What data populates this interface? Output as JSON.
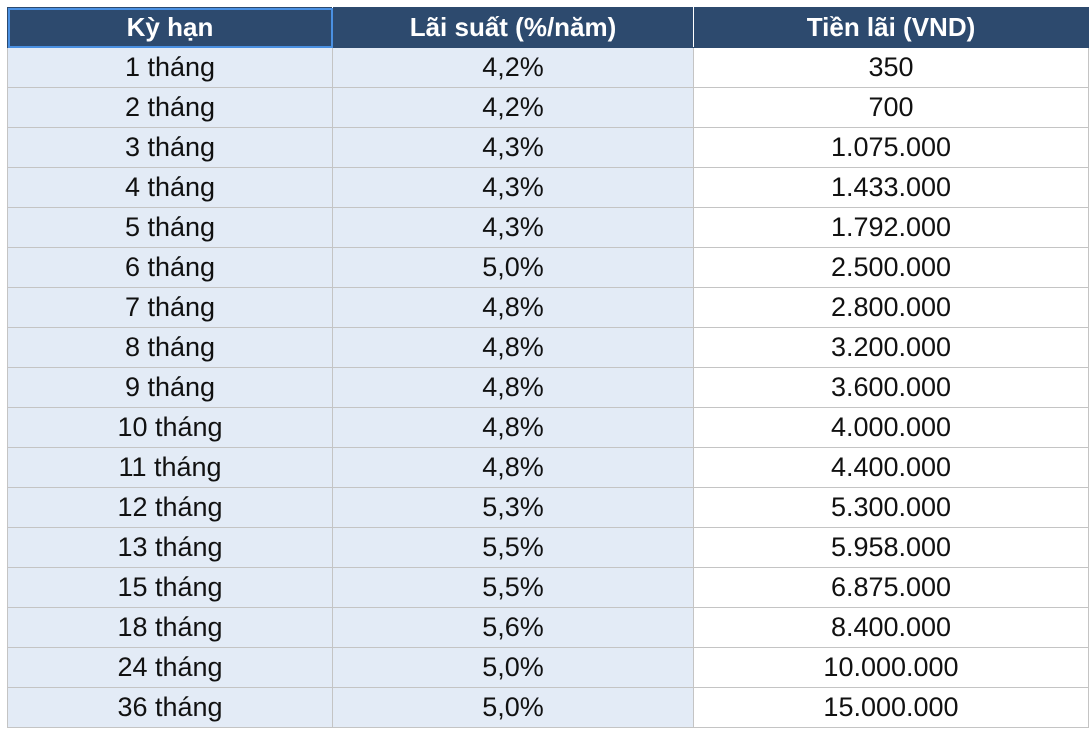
{
  "table": {
    "headers": [
      "Kỳ hạn",
      "Lãi suất (%/năm)",
      "Tiền lãi (VND)"
    ],
    "rows": [
      [
        "1 tháng",
        "4,2%",
        "350"
      ],
      [
        "2 tháng",
        "4,2%",
        "700"
      ],
      [
        "3 tháng",
        "4,3%",
        "1.075.000"
      ],
      [
        "4 tháng",
        "4,3%",
        "1.433.000"
      ],
      [
        "5 tháng",
        "4,3%",
        "1.792.000"
      ],
      [
        "6 tháng",
        "5,0%",
        "2.500.000"
      ],
      [
        "7 tháng",
        "4,8%",
        "2.800.000"
      ],
      [
        "8 tháng",
        "4,8%",
        "3.200.000"
      ],
      [
        "9 tháng",
        "4,8%",
        "3.600.000"
      ],
      [
        "10 tháng",
        "4,8%",
        "4.000.000"
      ],
      [
        "11 tháng",
        "4,8%",
        "4.400.000"
      ],
      [
        "12 tháng",
        "5,3%",
        "5.300.000"
      ],
      [
        "13 tháng",
        "5,5%",
        "5.958.000"
      ],
      [
        "15 tháng",
        "5,5%",
        "6.875.000"
      ],
      [
        "18 tháng",
        "5,6%",
        "8.400.000"
      ],
      [
        "24 tháng",
        "5,0%",
        "10.000.000"
      ],
      [
        "36 tháng",
        "5,0%",
        "15.000.000"
      ]
    ]
  },
  "colors": {
    "header_bg": "#2d4a6e",
    "header_text": "#ffffff",
    "shaded_cell_bg": "#e3ebf6",
    "selection_outline": "#4a90e2"
  }
}
